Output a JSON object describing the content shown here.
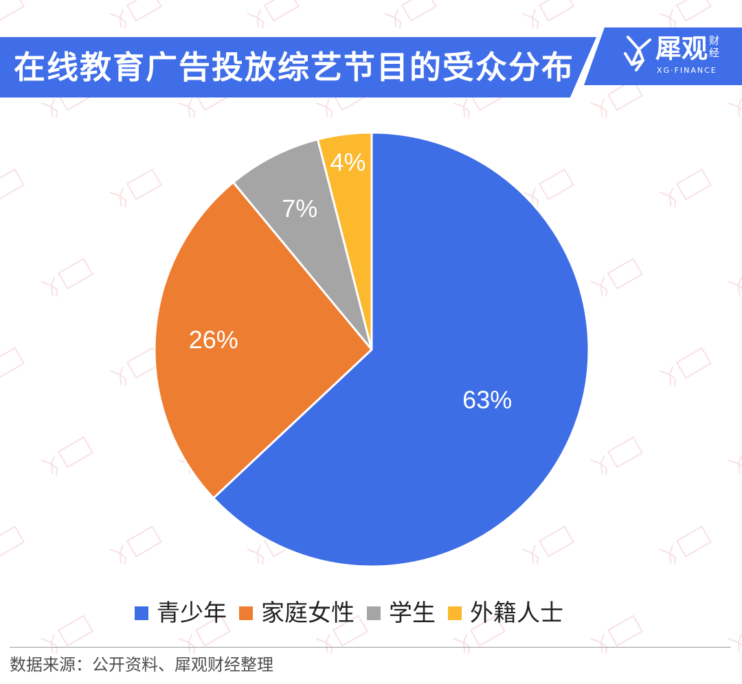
{
  "header": {
    "title": "在线教育广告投放综艺节目的受众分布",
    "brand_name": "犀观",
    "brand_name_small": "财经",
    "brand_en": "XG·FINANCE"
  },
  "chart_data": {
    "type": "pie",
    "title": "在线教育广告投放综艺节目的受众分布",
    "categories": [
      "青少年",
      "家庭女性",
      "学生",
      "外籍人士"
    ],
    "values": [
      63,
      26,
      7,
      4
    ],
    "labels": [
      "63%",
      "26%",
      "7%",
      "4%"
    ],
    "colors": [
      "#3d6ee6",
      "#ed7d31",
      "#a5a5a5",
      "#fdb92e"
    ],
    "legend_position": "bottom"
  },
  "legend": {
    "items": [
      {
        "label": "青少年",
        "color": "#3d6ee6"
      },
      {
        "label": "家庭女性",
        "color": "#ed7d31"
      },
      {
        "label": "学生",
        "color": "#a5a5a5"
      },
      {
        "label": "外籍人士",
        "color": "#fdb92e"
      }
    ]
  },
  "footer": {
    "source": "数据来源：公开资料、犀观财经整理"
  },
  "colors": {
    "accent": "#3f6ee8",
    "watermark": "#f3c9cc"
  }
}
